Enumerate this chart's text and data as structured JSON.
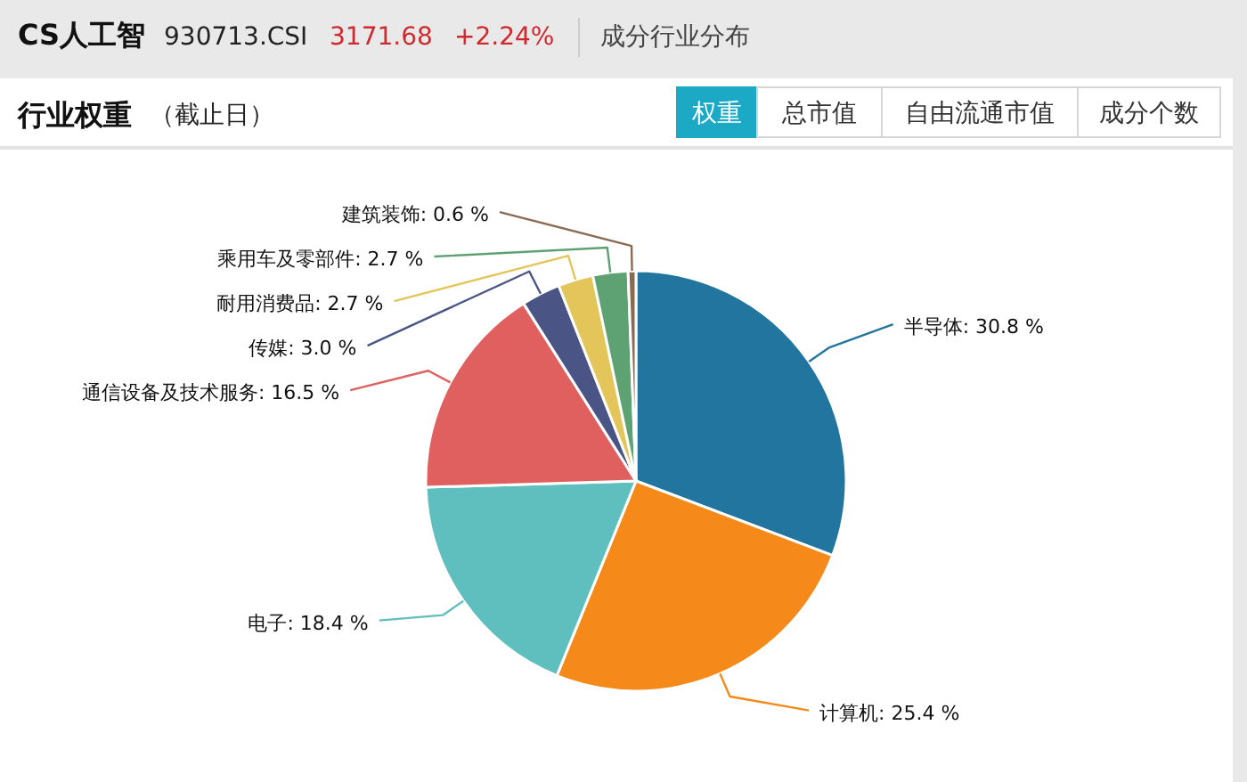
{
  "chart_data": {
    "type": "pie",
    "title": "行业权重",
    "subtitle": "（截止日）",
    "annotations": [
      "CS人工智",
      "930713.CSI",
      "3171.68",
      "+2.24%",
      "成分行业分布",
      "权重",
      "总市值",
      "自由流通市值",
      "成分个数"
    ],
    "categories": [
      "半导体",
      "计算机",
      "电子",
      "通信设备及技术服务",
      "传媒",
      "耐用消费品",
      "乘用车及零部件",
      "建筑装饰"
    ],
    "values": [
      30.8,
      25.4,
      18.4,
      16.5,
      3.0,
      2.7,
      2.7,
      0.6
    ],
    "colors": [
      "#22759f",
      "#f58a1b",
      "#5fbfbf",
      "#e05f5f",
      "#4a5586",
      "#e3c55a",
      "#5ea274",
      "#8b6a52"
    ],
    "value_labels": [
      ": 30.8 %",
      ": 25.4 %",
      ": 18.4 %",
      ": 16.5 %",
      ": 3.0 %",
      ": 2.7 %",
      ": 2.7 %",
      ": 0.6 %"
    ]
  }
}
